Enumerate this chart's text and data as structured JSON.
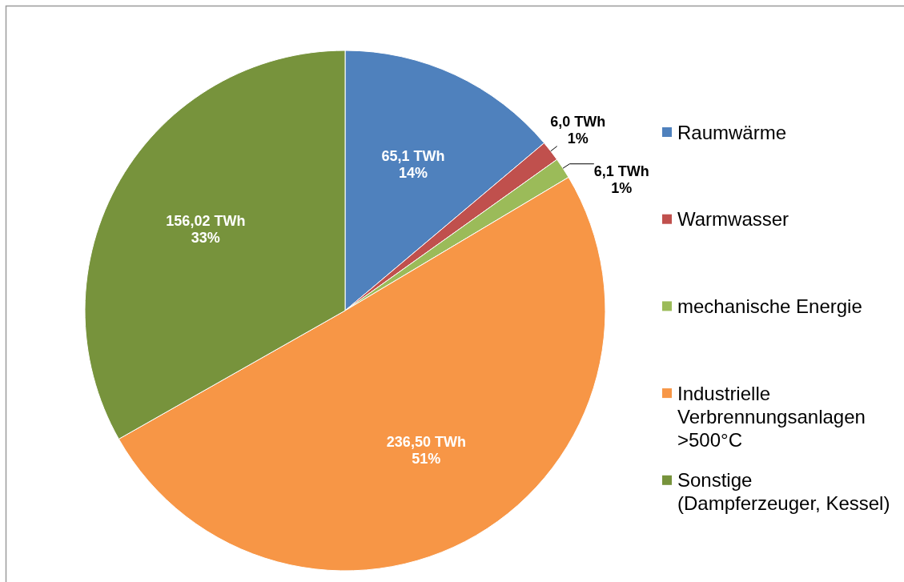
{
  "chart_data": {
    "type": "pie",
    "categories": [
      "Raumwärme",
      "Warmwasser",
      "mechanische Energie",
      "Industrielle Verbrennungsanlagen >500°C",
      "Sonstige (Dampferzeuger, Kessel)"
    ],
    "values": [
      65.1,
      6.0,
      6.1,
      236.5,
      156.02
    ],
    "colors": [
      "#4f81bd",
      "#c0504d",
      "#9bbb59",
      "#f79646",
      "#77933c"
    ],
    "value_labels": [
      "65,1 TWh\n14%",
      "6,0 TWh\n1%",
      "6,1 TWh\n1%",
      "236,50 TWh\n51%",
      "156,02 TWh\n33%"
    ],
    "legend": "right"
  }
}
